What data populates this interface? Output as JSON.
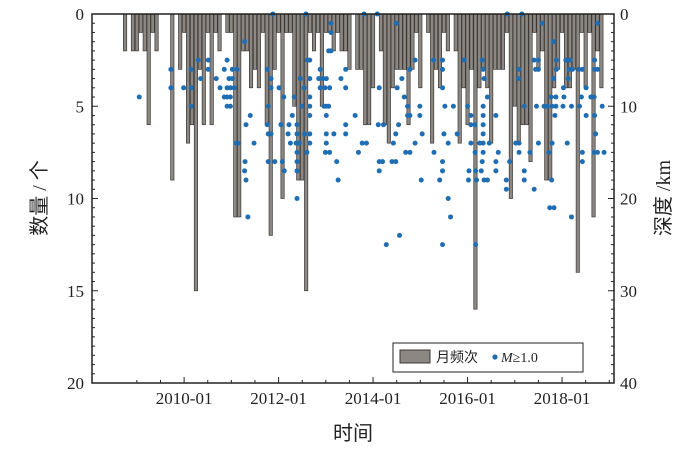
{
  "chart_data": {
    "type": "bar+scatter",
    "title": "",
    "xlabel": "时间",
    "ylabel_left": "数量 / 个",
    "ylabel_right": "深度 /km",
    "x_ticks": [
      "2010-01",
      "2012-01",
      "2014-01",
      "2016-01",
      "2018-01"
    ],
    "x_tick_years": [
      2010,
      2012,
      2014,
      2016,
      2018
    ],
    "xlim_years": [
      2008.05,
      2019.1
    ],
    "y_left_ticks": [
      "0",
      "5",
      "10",
      "15",
      "20"
    ],
    "y_left_lim": [
      0,
      20
    ],
    "y_left_inverted": true,
    "y_right_ticks": [
      "0",
      "10",
      "20",
      "30",
      "40"
    ],
    "y_right_lim": [
      0,
      40
    ],
    "y_right_inverted": true,
    "legend": {
      "placement": "bottom-right",
      "bars_label": "月频次",
      "points_label_italic": "M",
      "points_label_rest": "≥1.0"
    },
    "colors": {
      "bar_fill": "#8c8782",
      "bar_edge": "#3a3835",
      "point": "#1f6db3",
      "axis": "#222222"
    },
    "bars": {
      "name": "月频次",
      "start_month": "2008-10",
      "monthly_counts": [
        2,
        0,
        2,
        2,
        1,
        2,
        6,
        1,
        2,
        0,
        0,
        0,
        9,
        0,
        3,
        1,
        7,
        6,
        15,
        3,
        6,
        1,
        6,
        1,
        2,
        0,
        1,
        1,
        11,
        11,
        2,
        2,
        4,
        3,
        4,
        1,
        6,
        12,
        3,
        1,
        10,
        1,
        1,
        5,
        9,
        9,
        15,
        1,
        2,
        1,
        5,
        1,
        1,
        2,
        1,
        2,
        2,
        3,
        0,
        3,
        3,
        6,
        6,
        4,
        0,
        2,
        6,
        7,
        4,
        3,
        3,
        3,
        6,
        3,
        1,
        4,
        0,
        1,
        7,
        3,
        4,
        1,
        2,
        0,
        2,
        7,
        4,
        6,
        3,
        16,
        4,
        3,
        4,
        7,
        3,
        3,
        3,
        1,
        10,
        5,
        7,
        6,
        6,
        8,
        1,
        3,
        2,
        9,
        9,
        4,
        3,
        1,
        4,
        4,
        3,
        14,
        1,
        4,
        1,
        11,
        2,
        4
      ]
    },
    "points": {
      "name": "M≥1.0",
      "year_depth_km": [
        [
          2009.05,
          9
        ],
        [
          2009.72,
          6
        ],
        [
          2009.72,
          8
        ],
        [
          2009.99,
          8
        ],
        [
          2010.15,
          6
        ],
        [
          2010.15,
          8
        ],
        [
          2010.15,
          10
        ],
        [
          2010.3,
          5
        ],
        [
          2010.35,
          7
        ],
        [
          2010.51,
          5
        ],
        [
          2010.51,
          6
        ],
        [
          2010.68,
          7
        ],
        [
          2010.76,
          8
        ],
        [
          2010.85,
          6
        ],
        [
          2010.91,
          5
        ],
        [
          2010.95,
          7
        ],
        [
          2011.02,
          7
        ],
        [
          2010.91,
          8
        ],
        [
          2010.98,
          8
        ],
        [
          2011.06,
          8
        ],
        [
          2010.85,
          9
        ],
        [
          2010.91,
          9
        ],
        [
          2010.98,
          9
        ],
        [
          2010.91,
          10
        ],
        [
          2010.98,
          10
        ],
        [
          2011.02,
          6
        ],
        [
          2011.12,
          6
        ],
        [
          2011.1,
          14
        ],
        [
          2011.14,
          14
        ],
        [
          2011.28,
          3
        ],
        [
          2011.4,
          11
        ],
        [
          2011.31,
          12
        ],
        [
          2011.48,
          14
        ],
        [
          2011.29,
          16
        ],
        [
          2011.28,
          17
        ],
        [
          2011.31,
          18
        ],
        [
          2011.35,
          22
        ],
        [
          2011.76,
          6
        ],
        [
          2011.84,
          7
        ],
        [
          2011.84,
          8
        ],
        [
          2012.01,
          8
        ],
        [
          2012.11,
          9
        ],
        [
          2011.78,
          10
        ],
        [
          2011.76,
          12
        ],
        [
          2012.05,
          12
        ],
        [
          2012.22,
          12
        ],
        [
          2011.78,
          13
        ],
        [
          2011.84,
          13
        ],
        [
          2012.2,
          13
        ],
        [
          2012.29,
          11
        ],
        [
          2012.33,
          9
        ],
        [
          2011.78,
          16
        ],
        [
          2011.92,
          16
        ],
        [
          2012.08,
          16
        ],
        [
          2012.12,
          17
        ],
        [
          2012.25,
          14
        ],
        [
          2012.37,
          14
        ],
        [
          2012.41,
          14
        ],
        [
          2012.44,
          14
        ],
        [
          2012.39,
          12
        ],
        [
          2012.39,
          13
        ],
        [
          2012.39,
          15
        ],
        [
          2012.39,
          16
        ],
        [
          2012.39,
          17
        ],
        [
          2012.39,
          20
        ],
        [
          2011.88,
          0
        ],
        [
          2012.58,
          0
        ],
        [
          2012.46,
          7
        ],
        [
          2012.54,
          8
        ],
        [
          2012.49,
          10
        ],
        [
          2012.61,
          5
        ],
        [
          2012.66,
          5
        ],
        [
          2012.66,
          7
        ],
        [
          2012.66,
          9
        ],
        [
          2012.66,
          10
        ],
        [
          2012.66,
          11
        ],
        [
          2012.66,
          13
        ],
        [
          2012.66,
          14
        ],
        [
          2012.6,
          15
        ],
        [
          2012.55,
          13
        ],
        [
          2012.88,
          6
        ],
        [
          2012.85,
          7
        ],
        [
          2012.94,
          7
        ],
        [
          2013.01,
          7
        ],
        [
          2012.88,
          8
        ],
        [
          2012.98,
          8
        ],
        [
          2013.08,
          8
        ],
        [
          2012.96,
          10
        ],
        [
          2013.01,
          10
        ],
        [
          2013.06,
          10
        ],
        [
          2013.01,
          11
        ],
        [
          2013.01,
          13
        ],
        [
          2013.17,
          13
        ],
        [
          2013.01,
          14
        ],
        [
          2012.99,
          15
        ],
        [
          2013.08,
          15
        ],
        [
          2013.23,
          16
        ],
        [
          2013.26,
          18
        ],
        [
          2013.06,
          4
        ],
        [
          2013.11,
          4
        ],
        [
          2013.11,
          1
        ],
        [
          2013.11,
          2
        ],
        [
          2013.32,
          7
        ],
        [
          2013.42,
          6
        ],
        [
          2013.42,
          8
        ],
        [
          2013.42,
          12
        ],
        [
          2013.42,
          13
        ],
        [
          2013.81,
          0
        ],
        [
          2014.09,
          0
        ],
        [
          2014.49,
          1
        ],
        [
          2013.62,
          11
        ],
        [
          2013.69,
          15
        ],
        [
          2013.77,
          14
        ],
        [
          2013.86,
          14
        ],
        [
          2014.13,
          8
        ],
        [
          2014.11,
          12
        ],
        [
          2014.22,
          12
        ],
        [
          2014.13,
          16
        ],
        [
          2014.2,
          16
        ],
        [
          2014.13,
          17
        ],
        [
          2014.28,
          25
        ],
        [
          2014.56,
          24
        ],
        [
          2014.61,
          7
        ],
        [
          2014.51,
          8
        ],
        [
          2014.66,
          9
        ],
        [
          2014.73,
          10
        ],
        [
          2014.73,
          11
        ],
        [
          2014.78,
          11
        ],
        [
          2014.54,
          12
        ],
        [
          2014.48,
          13
        ],
        [
          2014.43,
          14
        ],
        [
          2014.4,
          16
        ],
        [
          2014.48,
          16
        ],
        [
          2014.69,
          15
        ],
        [
          2014.78,
          15
        ],
        [
          2014.78,
          6
        ],
        [
          2014.89,
          5
        ],
        [
          2014.89,
          14
        ],
        [
          2014.99,
          10
        ],
        [
          2014.99,
          11
        ],
        [
          2015.04,
          13
        ],
        [
          2015.02,
          18
        ],
        [
          2015.28,
          5
        ],
        [
          2015.47,
          5
        ],
        [
          2015.47,
          6
        ],
        [
          2015.47,
          8
        ],
        [
          2015.52,
          10
        ],
        [
          2015.5,
          13
        ],
        [
          2015.59,
          14
        ],
        [
          2015.29,
          15
        ],
        [
          2015.47,
          16
        ],
        [
          2015.47,
          17
        ],
        [
          2015.41,
          18
        ],
        [
          2015.59,
          20
        ],
        [
          2015.64,
          22
        ],
        [
          2015.47,
          25
        ],
        [
          2015.7,
          10
        ],
        [
          2015.78,
          13
        ],
        [
          2015.93,
          5
        ],
        [
          2016.0,
          10
        ],
        [
          2016.07,
          11
        ],
        [
          2016.07,
          12
        ],
        [
          2016.16,
          12
        ],
        [
          2016.07,
          14
        ],
        [
          2016.16,
          15
        ],
        [
          2016.03,
          17
        ],
        [
          2016.02,
          18
        ],
        [
          2016.17,
          17
        ],
        [
          2016.19,
          18
        ],
        [
          2016.17,
          25
        ],
        [
          2016.31,
          5
        ],
        [
          2016.33,
          6
        ],
        [
          2016.35,
          7
        ],
        [
          2016.42,
          9
        ],
        [
          2016.33,
          10
        ],
        [
          2016.33,
          11
        ],
        [
          2016.33,
          12
        ],
        [
          2016.33,
          13
        ],
        [
          2016.33,
          14
        ],
        [
          2016.33,
          15
        ],
        [
          2016.31,
          16
        ],
        [
          2016.29,
          17
        ],
        [
          2016.35,
          18
        ],
        [
          2016.42,
          18
        ],
        [
          2016.26,
          14
        ],
        [
          2016.46,
          14
        ],
        [
          2016.6,
          11
        ],
        [
          2016.65,
          15
        ],
        [
          2016.6,
          16
        ],
        [
          2016.6,
          17
        ],
        [
          2016.82,
          18
        ],
        [
          2016.82,
          19
        ],
        [
          2016.89,
          16
        ],
        [
          2016.84,
          0
        ],
        [
          2017.15,
          0
        ],
        [
          2017.09,
          6
        ],
        [
          2017.08,
          7
        ],
        [
          2017.2,
          10
        ],
        [
          2017.02,
          14
        ],
        [
          2017.09,
          14
        ],
        [
          2017.09,
          15
        ],
        [
          2017.2,
          17
        ],
        [
          2017.2,
          18
        ],
        [
          2017.32,
          15
        ],
        [
          2017.41,
          19
        ],
        [
          2017.58,
          1
        ],
        [
          2017.41,
          5
        ],
        [
          2017.5,
          5
        ],
        [
          2017.44,
          6
        ],
        [
          2017.5,
          6
        ],
        [
          2017.46,
          10
        ],
        [
          2017.62,
          10
        ],
        [
          2017.69,
          10
        ],
        [
          2017.5,
          14
        ],
        [
          2017.82,
          3
        ],
        [
          2017.88,
          5
        ],
        [
          2017.88,
          6
        ],
        [
          2017.82,
          7
        ],
        [
          2017.77,
          9
        ],
        [
          2017.87,
          9
        ],
        [
          2017.79,
          10
        ],
        [
          2017.87,
          10
        ],
        [
          2018.02,
          10
        ],
        [
          2017.85,
          11
        ],
        [
          2017.79,
          14
        ],
        [
          2017.72,
          15
        ],
        [
          2017.78,
          18
        ],
        [
          2017.74,
          21
        ],
        [
          2017.83,
          21
        ],
        [
          2018.03,
          8
        ],
        [
          2018.04,
          9
        ],
        [
          2018.08,
          5
        ],
        [
          2018.17,
          5
        ],
        [
          2018.15,
          6
        ],
        [
          2018.13,
          7
        ],
        [
          2018.2,
          10
        ],
        [
          2018.11,
          14
        ],
        [
          2018.2,
          22
        ],
        [
          2018.22,
          6
        ],
        [
          2018.36,
          6
        ],
        [
          2018.43,
          6
        ],
        [
          2018.37,
          10
        ],
        [
          2018.51,
          11
        ],
        [
          2018.41,
          9
        ],
        [
          2018.43,
          15
        ],
        [
          2018.43,
          16
        ],
        [
          2018.51,
          8
        ],
        [
          2018.61,
          9
        ],
        [
          2018.68,
          9
        ],
        [
          2018.69,
          5
        ],
        [
          2018.69,
          6
        ],
        [
          2018.75,
          6
        ],
        [
          2018.71,
          13
        ],
        [
          2018.68,
          15
        ],
        [
          2018.75,
          15
        ],
        [
          2018.89,
          15
        ],
        [
          2018.85,
          10
        ],
        [
          2018.75,
          1
        ],
        [
          2018.69,
          11
        ]
      ]
    }
  }
}
